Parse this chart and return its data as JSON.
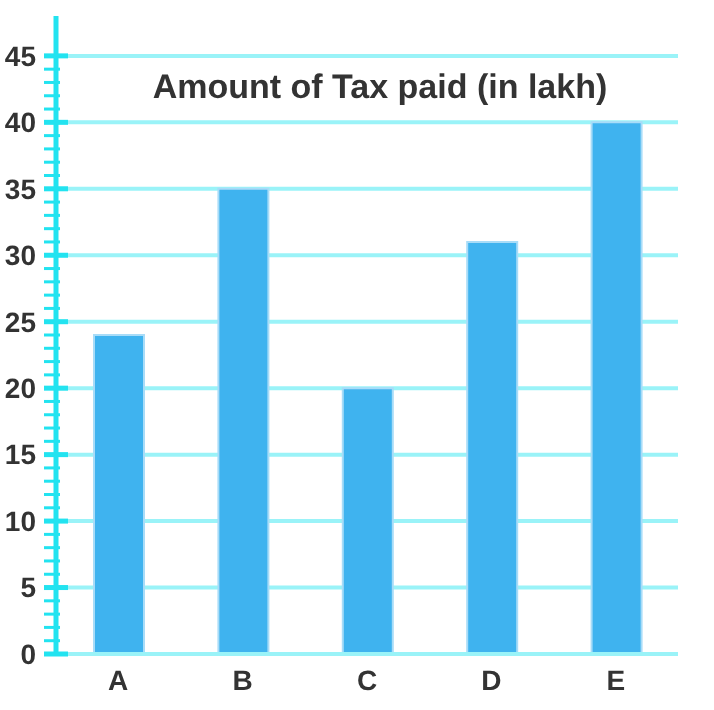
{
  "chart_data": {
    "type": "bar",
    "title": "Amount of Tax paid (in lakh)",
    "categories": [
      "A",
      "B",
      "C",
      "D",
      "E"
    ],
    "values": [
      24,
      35,
      20,
      31,
      40
    ],
    "color": "#3fb3ef",
    "ylim": [
      0,
      48
    ],
    "yticks": [
      0,
      {
        "value": 1,
        "label": null
      },
      {
        "value": 2,
        "label": null
      },
      {
        "value": 3,
        "label": null
      },
      {
        "value": 4,
        "label": null
      },
      5,
      {
        "value": 6,
        "label": null
      },
      {
        "value": 7,
        "label": null
      },
      {
        "value": 8,
        "label": null
      },
      {
        "value": 9,
        "label": null
      },
      10,
      {
        "value": 11,
        "label": null
      },
      {
        "value": 12,
        "label": null
      },
      {
        "value": 13,
        "label": null
      },
      {
        "value": 14,
        "label": null
      },
      15,
      {
        "value": 16,
        "label": null
      },
      {
        "value": 17,
        "label": null
      },
      {
        "value": 18,
        "label": null
      },
      {
        "value": 19,
        "label": null
      },
      20,
      {
        "value": 21,
        "label": null
      },
      {
        "value": 22,
        "label": null
      },
      {
        "value": 23,
        "label": null
      },
      {
        "value": 24,
        "label": null
      },
      25,
      {
        "value": 26,
        "label": null
      },
      {
        "value": 27,
        "label": null
      },
      {
        "value": 28,
        "label": null
      },
      {
        "value": 29,
        "label": null
      },
      30,
      {
        "value": 31,
        "label": null
      },
      {
        "value": 32,
        "label": null
      },
      {
        "value": 33,
        "label": null
      },
      {
        "value": 34,
        "label": null
      },
      35,
      {
        "value": 36,
        "label": null
      },
      {
        "value": 37,
        "label": null
      },
      {
        "value": 38,
        "label": null
      },
      {
        "value": 39,
        "label": null
      },
      40,
      {
        "value": 41,
        "label": null
      },
      {
        "value": 42,
        "label": null
      },
      {
        "value": 43,
        "label": null
      },
      {
        "value": 44,
        "label": null
      },
      45
    ],
    "grid": "y",
    "legend": false
  }
}
